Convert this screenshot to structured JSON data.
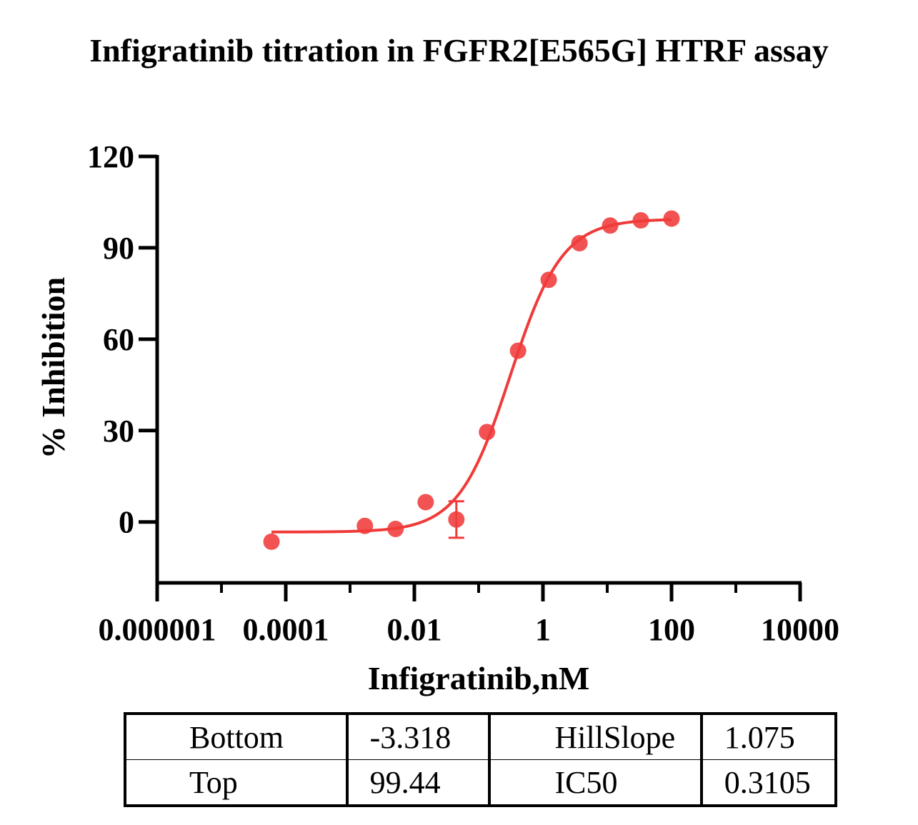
{
  "chart_data": {
    "type": "scatter",
    "title": "Infigratinib titration in FGFR2[E565G] HTRF assay",
    "xlabel": "Infigratinib,nM",
    "ylabel": "% Inhibition",
    "x_scale": "log10",
    "xlim": [
      1e-06,
      10000
    ],
    "ylim": [
      -20,
      120
    ],
    "x_ticks": [
      1e-06,
      0.0001,
      0.01,
      1,
      100,
      10000
    ],
    "x_tick_labels": [
      "0.000001",
      "0.0001",
      "0.01",
      "1",
      "100",
      "10000"
    ],
    "y_ticks": [
      0,
      30,
      60,
      90,
      120
    ],
    "y_tick_labels": [
      "0",
      "30",
      "60",
      "90",
      "120"
    ],
    "series": [
      {
        "color": "#f03a3a",
        "x": [
          6e-05,
          0.0017,
          0.0051,
          0.015,
          0.045,
          0.135,
          0.41,
          1.23,
          3.7,
          11.1,
          33.3,
          100
        ],
        "y": [
          -6.5,
          -1.3,
          -2.3,
          6.5,
          0.8,
          29.5,
          56.2,
          79.5,
          91.5,
          97.3,
          99.0,
          99.6
        ],
        "error": [
          0,
          0,
          0,
          0,
          6.0,
          0,
          0,
          0,
          0,
          0,
          0,
          0
        ]
      }
    ],
    "fit": {
      "model": "four-parameter logistic",
      "bottom": -3.318,
      "top": 99.44,
      "hillslope": 1.075,
      "ic50": 0.3105,
      "x_range": [
        6e-05,
        100
      ]
    },
    "grid": false,
    "legend": "none"
  },
  "params_table": {
    "rows": [
      [
        "Bottom",
        "-3.318",
        "HillSlope",
        "1.075"
      ],
      [
        "Top",
        "99.44",
        "IC50",
        "0.3105"
      ]
    ]
  }
}
